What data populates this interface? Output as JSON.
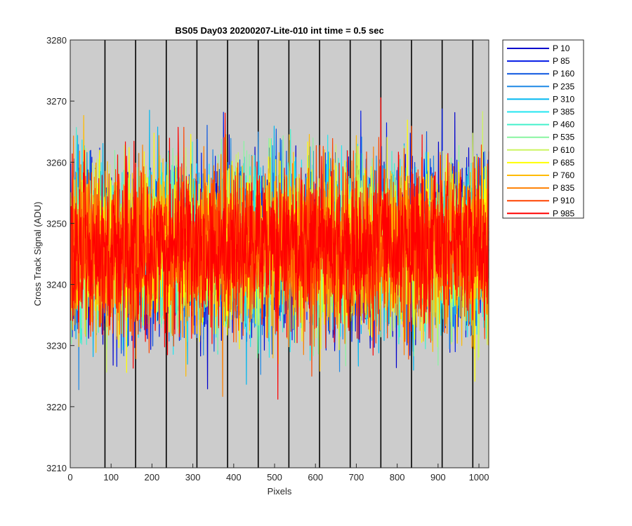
{
  "chart_data": {
    "type": "line",
    "title": "BS05 Day03 20200207-Lite-010 int time = 0.5 sec",
    "xlabel": "Pixels",
    "ylabel": "Cross Track Signal (ADU)",
    "xlim": [
      0,
      1024
    ],
    "ylim": [
      3210,
      3280
    ],
    "xticks": [
      0,
      100,
      200,
      300,
      400,
      500,
      600,
      700,
      800,
      900,
      1000
    ],
    "yticks": [
      3210,
      3220,
      3230,
      3240,
      3250,
      3260,
      3270,
      3280
    ],
    "background_color": "#cccccc",
    "vertical_markers": [
      85,
      160,
      235,
      310,
      385,
      460,
      535,
      610,
      685,
      760,
      835,
      910,
      985
    ],
    "legend_position": "outside-top-right",
    "series_mean": 3246,
    "series_noise_sd": 6.5,
    "series": [
      {
        "name": "P 10",
        "color": "#0000cc"
      },
      {
        "name": "P 85",
        "color": "#0018e6"
      },
      {
        "name": "P 160",
        "color": "#0a55e0"
      },
      {
        "name": "P 235",
        "color": "#1e88e5"
      },
      {
        "name": "P 310",
        "color": "#00b7f0"
      },
      {
        "name": "P 385",
        "color": "#22e6f0"
      },
      {
        "name": "P 460",
        "color": "#44f0cc"
      },
      {
        "name": "P 535",
        "color": "#88f5a0"
      },
      {
        "name": "P 610",
        "color": "#ccf560"
      },
      {
        "name": "P 685",
        "color": "#ffff00"
      },
      {
        "name": "P 760",
        "color": "#ffbb00"
      },
      {
        "name": "P 835",
        "color": "#ff8000"
      },
      {
        "name": "P 910",
        "color": "#ff4400"
      },
      {
        "name": "P 985",
        "color": "#ff0000"
      }
    ]
  }
}
